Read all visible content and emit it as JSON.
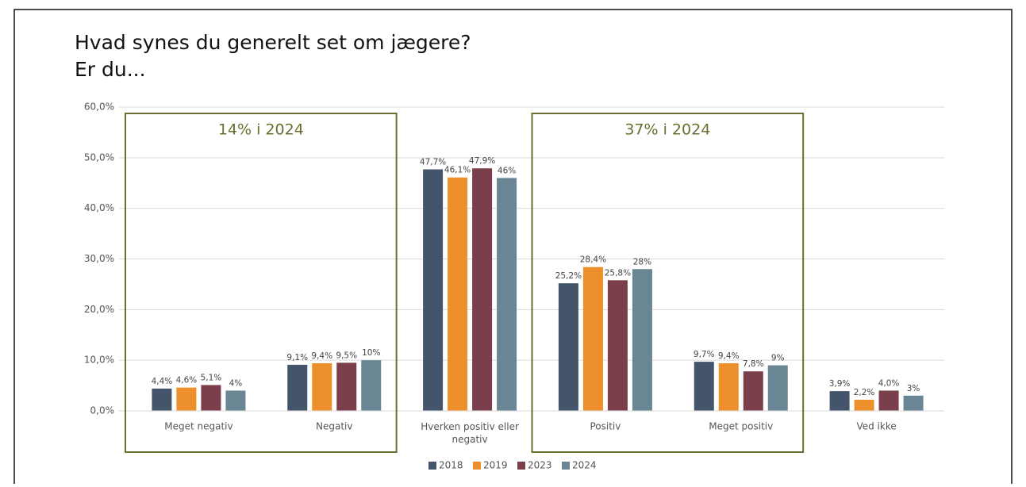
{
  "chart_data": {
    "type": "bar",
    "title": "Hvad synes du generelt set om jægere?",
    "subtitle": "Er du...",
    "categories": [
      "Meget negativ",
      "Negativ",
      "Hverken positiv eller negativ",
      "Positiv",
      "Meget positiv",
      "Ved ikke"
    ],
    "series": [
      {
        "name": "2018",
        "color": "#44546a",
        "values": [
          4.4,
          9.1,
          47.7,
          25.2,
          9.7,
          3.9
        ],
        "value_labels": [
          "4,4%",
          "9,1%",
          "47,7%",
          "25,2%",
          "9,7%",
          "3,9%"
        ]
      },
      {
        "name": "2019",
        "color": "#ed8f2b",
        "values": [
          4.6,
          9.4,
          46.1,
          28.4,
          9.4,
          2.2
        ],
        "value_labels": [
          "4,6%",
          "9,4%",
          "46,1%",
          "28,4%",
          "9,4%",
          "2,2%"
        ]
      },
      {
        "name": "2023",
        "color": "#7b3f4b",
        "values": [
          5.1,
          9.5,
          47.9,
          25.8,
          7.8,
          4.0
        ],
        "value_labels": [
          "5,1%",
          "9,5%",
          "47,9%",
          "25,8%",
          "7,8%",
          "4,0%"
        ]
      },
      {
        "name": "2024",
        "color": "#6a8593",
        "values": [
          4,
          10,
          46,
          28,
          9,
          3
        ],
        "value_labels": [
          "4%",
          "10%",
          "46%",
          "28%",
          "9%",
          "3%"
        ]
      }
    ],
    "ylim": [
      0,
      60
    ],
    "yticks": [
      {
        "value": 0,
        "label": "0,0%"
      },
      {
        "value": 10,
        "label": "10,0%"
      },
      {
        "value": 20,
        "label": "20,0%"
      },
      {
        "value": 30,
        "label": "30,0%"
      },
      {
        "value": 40,
        "label": "40,0%"
      },
      {
        "value": 50,
        "label": "50,0%"
      },
      {
        "value": 60,
        "label": "60,0%"
      }
    ],
    "grid": true,
    "legend": "bottom",
    "annotations": [
      "14% i 2024",
      "37% i 2024"
    ]
  }
}
